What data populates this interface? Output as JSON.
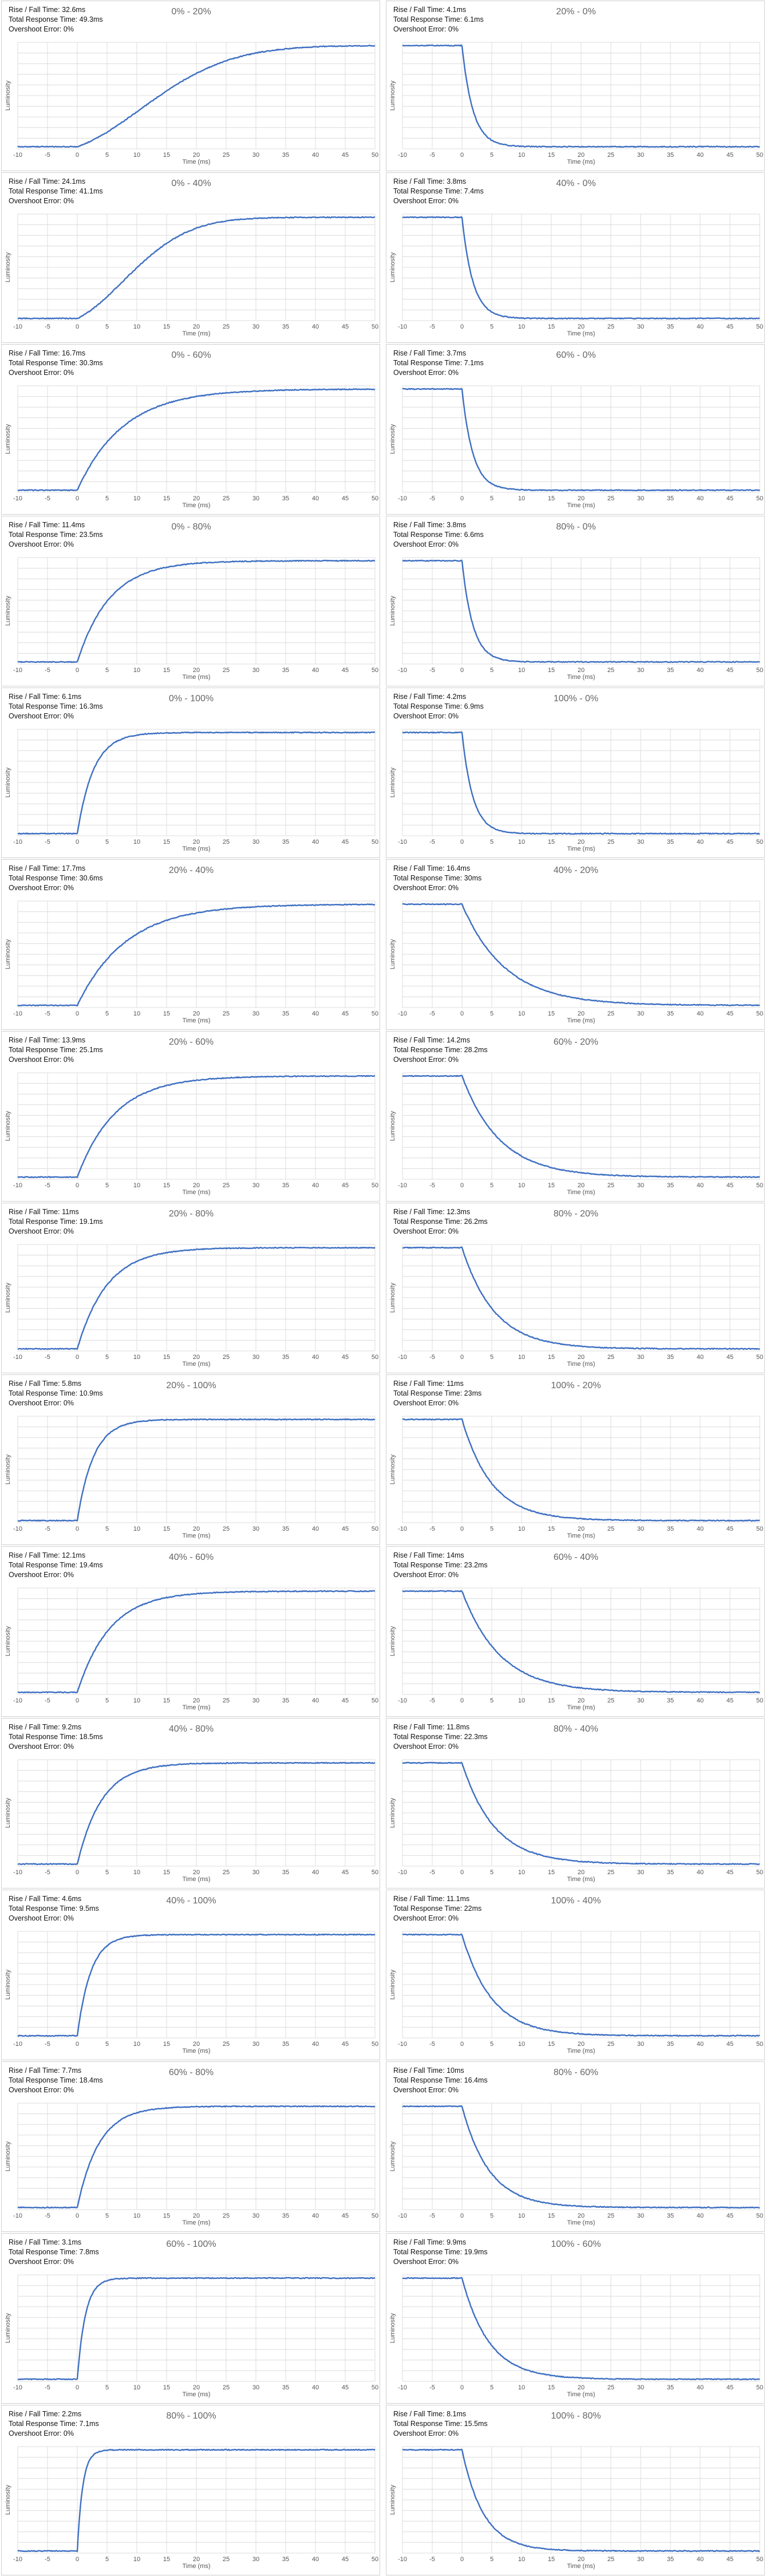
{
  "page": {
    "rows": 15,
    "cols": 2
  },
  "labels": {
    "rise_prefix": "Rise / Fall Time: ",
    "total_prefix": "Total Response Time: ",
    "overshoot_prefix": "Overshoot Error: ",
    "xlabel": "Time (ms)",
    "ylabel": "Luminosity"
  },
  "colors": {
    "line": "#3e6fc2",
    "grid": "#dcdcdc",
    "border": "#d0d0d0",
    "tick_text": "#555555",
    "title_text": "#666666"
  },
  "chart_data": [
    {
      "type": "line",
      "title": "0% - 20%",
      "rise_fall": "32.6ms",
      "total": "49.3ms",
      "overshoot": "0%",
      "direction": "rise",
      "start_ms": 0,
      "settle_ms": 33,
      "xlim": [
        -10,
        50
      ],
      "xticks": [
        "-10",
        "-5",
        "0",
        "5",
        "10",
        "15",
        "20",
        "25",
        "30",
        "35",
        "40",
        "45",
        "50"
      ],
      "xlabel": "Time (ms)",
      "ylabel": "Luminosity",
      "grid": true
    },
    {
      "type": "line",
      "title": "20% - 0%",
      "rise_fall": "4.1ms",
      "total": "6.1ms",
      "overshoot": "0%",
      "direction": "fall",
      "start_ms": 0,
      "settle_ms": 4,
      "xlim": [
        -10,
        50
      ],
      "xticks": [
        "-10",
        "-5",
        "0",
        "5",
        "10",
        "15",
        "20",
        "25",
        "30",
        "35",
        "40",
        "45",
        "50"
      ],
      "xlabel": "Time (ms)",
      "ylabel": "Luminosity",
      "grid": true
    },
    {
      "type": "line",
      "title": "0% - 40%",
      "rise_fall": "24.1ms",
      "total": "41.1ms",
      "overshoot": "0%",
      "direction": "rise",
      "start_ms": 0,
      "settle_ms": 24,
      "xlim": [
        -10,
        50
      ],
      "xticks": [
        "-10",
        "-5",
        "0",
        "5",
        "10",
        "15",
        "20",
        "25",
        "30",
        "35",
        "40",
        "45",
        "50"
      ],
      "xlabel": "Time (ms)",
      "ylabel": "Luminosity",
      "grid": true
    },
    {
      "type": "line",
      "title": "40% - 0%",
      "rise_fall": "3.8ms",
      "total": "7.4ms",
      "overshoot": "0%",
      "direction": "fall",
      "start_ms": 0,
      "settle_ms": 4,
      "xlim": [
        -10,
        50
      ],
      "xticks": [
        "-10",
        "-5",
        "0",
        "5",
        "10",
        "15",
        "20",
        "25",
        "30",
        "35",
        "40",
        "45",
        "50"
      ],
      "xlabel": "Time (ms)",
      "ylabel": "Luminosity",
      "grid": true
    },
    {
      "type": "line",
      "title": "0% - 60%",
      "rise_fall": "16.7ms",
      "total": "30.3ms",
      "overshoot": "0%",
      "direction": "rise",
      "start_ms": 0,
      "settle_ms": 17,
      "xlim": [
        -10,
        50
      ],
      "xticks": [
        "-10",
        "-5",
        "0",
        "5",
        "10",
        "15",
        "20",
        "25",
        "30",
        "35",
        "40",
        "45",
        "50"
      ],
      "xlabel": "Time (ms)",
      "ylabel": "Luminosity",
      "grid": true
    },
    {
      "type": "line",
      "title": "60% - 0%",
      "rise_fall": "3.7ms",
      "total": "7.1ms",
      "overshoot": "0%",
      "direction": "fall",
      "start_ms": 0,
      "settle_ms": 4,
      "xlim": [
        -10,
        50
      ],
      "xticks": [
        "-10",
        "-5",
        "0",
        "5",
        "10",
        "15",
        "20",
        "25",
        "30",
        "35",
        "40",
        "45",
        "50"
      ],
      "xlabel": "Time (ms)",
      "ylabel": "Luminosity",
      "grid": true
    },
    {
      "type": "line",
      "title": "0% - 80%",
      "rise_fall": "11.4ms",
      "total": "23.5ms",
      "overshoot": "0%",
      "direction": "rise",
      "start_ms": 0,
      "settle_ms": 12,
      "xlim": [
        -10,
        50
      ],
      "xticks": [
        "-10",
        "-5",
        "0",
        "5",
        "10",
        "15",
        "20",
        "25",
        "30",
        "35",
        "40",
        "45",
        "50"
      ],
      "xlabel": "Time (ms)",
      "ylabel": "Luminosity",
      "grid": true
    },
    {
      "type": "line",
      "title": "80% - 0%",
      "rise_fall": "3.8ms",
      "total": "6.6ms",
      "overshoot": "0%",
      "direction": "fall",
      "start_ms": 0,
      "settle_ms": 4,
      "xlim": [
        -10,
        50
      ],
      "xticks": [
        "-10",
        "-5",
        "0",
        "5",
        "10",
        "15",
        "20",
        "25",
        "30",
        "35",
        "40",
        "45",
        "50"
      ],
      "xlabel": "Time (ms)",
      "ylabel": "Luminosity",
      "grid": true
    },
    {
      "type": "line",
      "title": "0% - 100%",
      "rise_fall": "6.1ms",
      "total": "16.3ms",
      "overshoot": "0%",
      "direction": "rise",
      "start_ms": 0,
      "settle_ms": 6,
      "xlim": [
        -10,
        50
      ],
      "xticks": [
        "-10",
        "-5",
        "0",
        "5",
        "10",
        "15",
        "20",
        "25",
        "30",
        "35",
        "40",
        "45",
        "50"
      ],
      "xlabel": "Time (ms)",
      "ylabel": "Luminosity",
      "grid": true
    },
    {
      "type": "line",
      "title": "100% - 0%",
      "rise_fall": "4.2ms",
      "total": "6.9ms",
      "overshoot": "0%",
      "direction": "fall",
      "start_ms": 0,
      "settle_ms": 4,
      "xlim": [
        -10,
        50
      ],
      "xticks": [
        "-10",
        "-5",
        "0",
        "5",
        "10",
        "15",
        "20",
        "25",
        "30",
        "35",
        "40",
        "45",
        "50"
      ],
      "xlabel": "Time (ms)",
      "ylabel": "Luminosity",
      "grid": true
    },
    {
      "type": "line",
      "title": "20% - 40%",
      "rise_fall": "17.7ms",
      "total": "30.6ms",
      "overshoot": "0%",
      "direction": "rise",
      "start_ms": 0,
      "settle_ms": 18,
      "xlim": [
        -10,
        50
      ],
      "xticks": [
        "-10",
        "-5",
        "0",
        "5",
        "10",
        "15",
        "20",
        "25",
        "30",
        "35",
        "40",
        "45",
        "50"
      ],
      "xlabel": "Time (ms)",
      "ylabel": "Luminosity",
      "grid": true
    },
    {
      "type": "line",
      "title": "40% - 20%",
      "rise_fall": "16.4ms",
      "total": "30ms",
      "overshoot": "0%",
      "direction": "fall",
      "start_ms": 0,
      "settle_ms": 16,
      "xlim": [
        -10,
        50
      ],
      "xticks": [
        "-10",
        "-5",
        "0",
        "5",
        "10",
        "15",
        "20",
        "25",
        "30",
        "35",
        "40",
        "45",
        "50"
      ],
      "xlabel": "Time (ms)",
      "ylabel": "Luminosity",
      "grid": true
    },
    {
      "type": "line",
      "title": "20% - 60%",
      "rise_fall": "13.9ms",
      "total": "25.1ms",
      "overshoot": "0%",
      "direction": "rise",
      "start_ms": 0,
      "settle_ms": 14,
      "xlim": [
        -10,
        50
      ],
      "xticks": [
        "-10",
        "-5",
        "0",
        "5",
        "10",
        "15",
        "20",
        "25",
        "30",
        "35",
        "40",
        "45",
        "50"
      ],
      "xlabel": "Time (ms)",
      "ylabel": "Luminosity",
      "grid": true
    },
    {
      "type": "line",
      "title": "60% - 20%",
      "rise_fall": "14.2ms",
      "total": "28.2ms",
      "overshoot": "0%",
      "direction": "fall",
      "start_ms": 0,
      "settle_ms": 14,
      "xlim": [
        -10,
        50
      ],
      "xticks": [
        "-10",
        "-5",
        "0",
        "5",
        "10",
        "15",
        "20",
        "25",
        "30",
        "35",
        "40",
        "45",
        "50"
      ],
      "xlabel": "Time (ms)",
      "ylabel": "Luminosity",
      "grid": true
    },
    {
      "type": "line",
      "title": "20% - 80%",
      "rise_fall": "11ms",
      "total": "19.1ms",
      "overshoot": "0%",
      "direction": "rise",
      "start_ms": 0,
      "settle_ms": 11,
      "xlim": [
        -10,
        50
      ],
      "xticks": [
        "-10",
        "-5",
        "0",
        "5",
        "10",
        "15",
        "20",
        "25",
        "30",
        "35",
        "40",
        "45",
        "50"
      ],
      "xlabel": "Time (ms)",
      "ylabel": "Luminosity",
      "grid": true
    },
    {
      "type": "line",
      "title": "80% - 20%",
      "rise_fall": "12.3ms",
      "total": "26.2ms",
      "overshoot": "0%",
      "direction": "fall",
      "start_ms": 0,
      "settle_ms": 12,
      "xlim": [
        -10,
        50
      ],
      "xticks": [
        "-10",
        "-5",
        "0",
        "5",
        "10",
        "15",
        "20",
        "25",
        "30",
        "35",
        "40",
        "45",
        "50"
      ],
      "xlabel": "Time (ms)",
      "ylabel": "Luminosity",
      "grid": true
    },
    {
      "type": "line",
      "title": "20% - 100%",
      "rise_fall": "5.8ms",
      "total": "10.9ms",
      "overshoot": "0%",
      "direction": "rise",
      "start_ms": 0,
      "settle_ms": 6,
      "xlim": [
        -10,
        50
      ],
      "xticks": [
        "-10",
        "-5",
        "0",
        "5",
        "10",
        "15",
        "20",
        "25",
        "30",
        "35",
        "40",
        "45",
        "50"
      ],
      "xlabel": "Time (ms)",
      "ylabel": "Luminosity",
      "grid": true
    },
    {
      "type": "line",
      "title": "100% - 20%",
      "rise_fall": "11ms",
      "total": "23ms",
      "overshoot": "0%",
      "direction": "fall",
      "start_ms": 0,
      "settle_ms": 11,
      "xlim": [
        -10,
        50
      ],
      "xticks": [
        "-10",
        "-5",
        "0",
        "5",
        "10",
        "15",
        "20",
        "25",
        "30",
        "35",
        "40",
        "45",
        "50"
      ],
      "xlabel": "Time (ms)",
      "ylabel": "Luminosity",
      "grid": true
    },
    {
      "type": "line",
      "title": "40% - 60%",
      "rise_fall": "12.1ms",
      "total": "19.4ms",
      "overshoot": "0%",
      "direction": "rise",
      "start_ms": 0,
      "settle_ms": 12,
      "xlim": [
        -10,
        50
      ],
      "xticks": [
        "-10",
        "-5",
        "0",
        "5",
        "10",
        "15",
        "20",
        "25",
        "30",
        "35",
        "40",
        "45",
        "50"
      ],
      "xlabel": "Time (ms)",
      "ylabel": "Luminosity",
      "grid": true
    },
    {
      "type": "line",
      "title": "60% - 40%",
      "rise_fall": "14ms",
      "total": "23.2ms",
      "overshoot": "0%",
      "direction": "fall",
      "start_ms": 0,
      "settle_ms": 14,
      "xlim": [
        -10,
        50
      ],
      "xticks": [
        "-10",
        "-5",
        "0",
        "5",
        "10",
        "15",
        "20",
        "25",
        "30",
        "35",
        "40",
        "45",
        "50"
      ],
      "xlabel": "Time (ms)",
      "ylabel": "Luminosity",
      "grid": true
    },
    {
      "type": "line",
      "title": "40% - 80%",
      "rise_fall": "9.2ms",
      "total": "18.5ms",
      "overshoot": "0%",
      "direction": "rise",
      "start_ms": 0,
      "settle_ms": 9,
      "xlim": [
        -10,
        50
      ],
      "xticks": [
        "-10",
        "-5",
        "0",
        "5",
        "10",
        "15",
        "20",
        "25",
        "30",
        "35",
        "40",
        "45",
        "50"
      ],
      "xlabel": "Time (ms)",
      "ylabel": "Luminosity",
      "grid": true
    },
    {
      "type": "line",
      "title": "80% - 40%",
      "rise_fall": "11.8ms",
      "total": "22.3ms",
      "overshoot": "0%",
      "direction": "fall",
      "start_ms": 0,
      "settle_ms": 12,
      "xlim": [
        -10,
        50
      ],
      "xticks": [
        "-10",
        "-5",
        "0",
        "5",
        "10",
        "15",
        "20",
        "25",
        "30",
        "35",
        "40",
        "45",
        "50"
      ],
      "xlabel": "Time (ms)",
      "ylabel": "Luminosity",
      "grid": true
    },
    {
      "type": "line",
      "title": "40% - 100%",
      "rise_fall": "4.6ms",
      "total": "9.5ms",
      "overshoot": "0%",
      "direction": "rise",
      "start_ms": 0,
      "settle_ms": 5,
      "xlim": [
        -10,
        50
      ],
      "xticks": [
        "-10",
        "-5",
        "0",
        "5",
        "10",
        "15",
        "20",
        "25",
        "30",
        "35",
        "40",
        "45",
        "50"
      ],
      "xlabel": "Time (ms)",
      "ylabel": "Luminosity",
      "grid": true
    },
    {
      "type": "line",
      "title": "100% - 40%",
      "rise_fall": "11.1ms",
      "total": "22ms",
      "overshoot": "0%",
      "direction": "fall",
      "start_ms": 0,
      "settle_ms": 11,
      "xlim": [
        -10,
        50
      ],
      "xticks": [
        "-10",
        "-5",
        "0",
        "5",
        "10",
        "15",
        "20",
        "25",
        "30",
        "35",
        "40",
        "45",
        "50"
      ],
      "xlabel": "Time (ms)",
      "ylabel": "Luminosity",
      "grid": true
    },
    {
      "type": "line",
      "title": "60% - 80%",
      "rise_fall": "7.7ms",
      "total": "18.4ms",
      "overshoot": "0%",
      "direction": "rise",
      "start_ms": 0,
      "settle_ms": 8,
      "xlim": [
        -10,
        50
      ],
      "xticks": [
        "-10",
        "-5",
        "0",
        "5",
        "10",
        "15",
        "20",
        "25",
        "30",
        "35",
        "40",
        "45",
        "50"
      ],
      "xlabel": "Time (ms)",
      "ylabel": "Luminosity",
      "grid": true
    },
    {
      "type": "line",
      "title": "80% - 60%",
      "rise_fall": "10ms",
      "total": "16.4ms",
      "overshoot": "0%",
      "direction": "fall",
      "start_ms": 0,
      "settle_ms": 10,
      "xlim": [
        -10,
        50
      ],
      "xticks": [
        "-10",
        "-5",
        "0",
        "5",
        "10",
        "15",
        "20",
        "25",
        "30",
        "35",
        "40",
        "45",
        "50"
      ],
      "xlabel": "Time (ms)",
      "ylabel": "Luminosity",
      "grid": true
    },
    {
      "type": "line",
      "title": "60% - 100%",
      "rise_fall": "3.1ms",
      "total": "7.8ms",
      "overshoot": "0%",
      "direction": "rise",
      "start_ms": 0,
      "settle_ms": 3,
      "xlim": [
        -10,
        50
      ],
      "xticks": [
        "-10",
        "-5",
        "0",
        "5",
        "10",
        "15",
        "20",
        "25",
        "30",
        "35",
        "40",
        "45",
        "50"
      ],
      "xlabel": "Time (ms)",
      "ylabel": "Luminosity",
      "grid": true
    },
    {
      "type": "line",
      "title": "100% - 60%",
      "rise_fall": "9.9ms",
      "total": "19.9ms",
      "overshoot": "0%",
      "direction": "fall",
      "start_ms": 0,
      "settle_ms": 10,
      "xlim": [
        -10,
        50
      ],
      "xticks": [
        "-10",
        "-5",
        "0",
        "5",
        "10",
        "15",
        "20",
        "25",
        "30",
        "35",
        "40",
        "45",
        "50"
      ],
      "xlabel": "Time (ms)",
      "ylabel": "Luminosity",
      "grid": true
    },
    {
      "type": "line",
      "title": "80% - 100%",
      "rise_fall": "2.2ms",
      "total": "7.1ms",
      "overshoot": "0%",
      "direction": "rise",
      "start_ms": 0,
      "settle_ms": 2,
      "xlim": [
        -10,
        50
      ],
      "xticks": [
        "-10",
        "-5",
        "0",
        "5",
        "10",
        "15",
        "20",
        "25",
        "30",
        "35",
        "40",
        "45",
        "50"
      ],
      "xlabel": "Time (ms)",
      "ylabel": "Luminosity",
      "grid": true
    },
    {
      "type": "line",
      "title": "100% - 80%",
      "rise_fall": "8.1ms",
      "total": "15.5ms",
      "overshoot": "0%",
      "direction": "fall",
      "start_ms": 0,
      "settle_ms": 8,
      "xlim": [
        -10,
        50
      ],
      "xticks": [
        "-10",
        "-5",
        "0",
        "5",
        "10",
        "15",
        "20",
        "25",
        "30",
        "35",
        "40",
        "45",
        "50"
      ],
      "xlabel": "Time (ms)",
      "ylabel": "Luminosity",
      "grid": true
    }
  ]
}
